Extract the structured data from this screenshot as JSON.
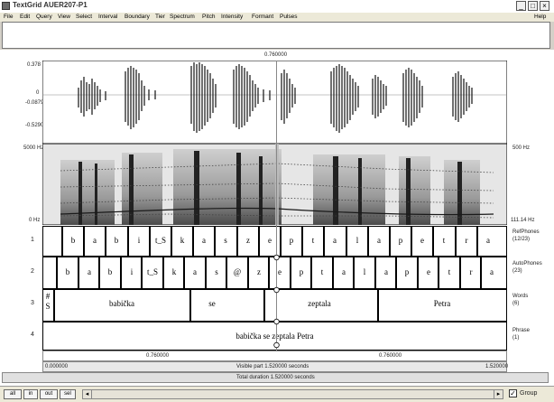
{
  "window": {
    "title": "TextGrid AUER207-P1"
  },
  "menu": [
    "File",
    "Edit",
    "Query",
    "View",
    "Select",
    "Interval",
    "Boundary",
    "Tier",
    "Spectrum",
    "Pitch",
    "Intensity",
    "Formant",
    "Pulses"
  ],
  "help": "Help",
  "waveform": {
    "top_value": "0.378",
    "zero_value": "0",
    "neg_value": "-0.08799",
    "bottom_value": "-0.5290",
    "cursor_time": "0.760000"
  },
  "spectrogram": {
    "top_freq": "5000 Hz",
    "bottom_freq": "0 Hz",
    "right_top": "500 Hz",
    "right_bottom": "111.14 Hz"
  },
  "tiers": [
    {
      "num": "1",
      "name": "RefPhones\n(12/23)",
      "name_line1": "RefPhones",
      "name_line2": "(12/23)",
      "segments": [
        "b",
        "a",
        "b",
        "i",
        "t_S",
        "k",
        "a",
        "s",
        "z",
        "e",
        "p",
        "t",
        "a",
        "l",
        "a",
        "p",
        "e",
        "t",
        "r",
        "a"
      ]
    },
    {
      "num": "2",
      "name_line1": "AutoPhones",
      "name_line2": "(23)",
      "segments": [
        "b",
        "a",
        "b",
        "i",
        "t_S",
        "k",
        "a",
        "s",
        "@",
        "z",
        "e",
        "p",
        "t",
        "a",
        "l",
        "a",
        "p",
        "e",
        "t",
        "r",
        "a"
      ]
    },
    {
      "num": "3",
      "name_line1": "Words",
      "name_line2": "(6)",
      "pre": "#",
      "pre2": "S",
      "segments": [
        "babička",
        "se",
        "zeptala",
        "Petra"
      ]
    },
    {
      "num": "4",
      "name_line1": "Phrase",
      "name_line2": "(1)",
      "segments": [
        "babička se zeptala Petra"
      ]
    }
  ],
  "time": {
    "left_sel": "0.760000",
    "right_sel": "0.760000",
    "start": "0.000000",
    "end": "1.520000",
    "visible": "Visible part 1.520000 seconds",
    "total": "Total duration 1.520000 seconds"
  },
  "buttons": {
    "all": "all",
    "in": "in",
    "out": "out",
    "sel": "sel",
    "group": "Group"
  }
}
